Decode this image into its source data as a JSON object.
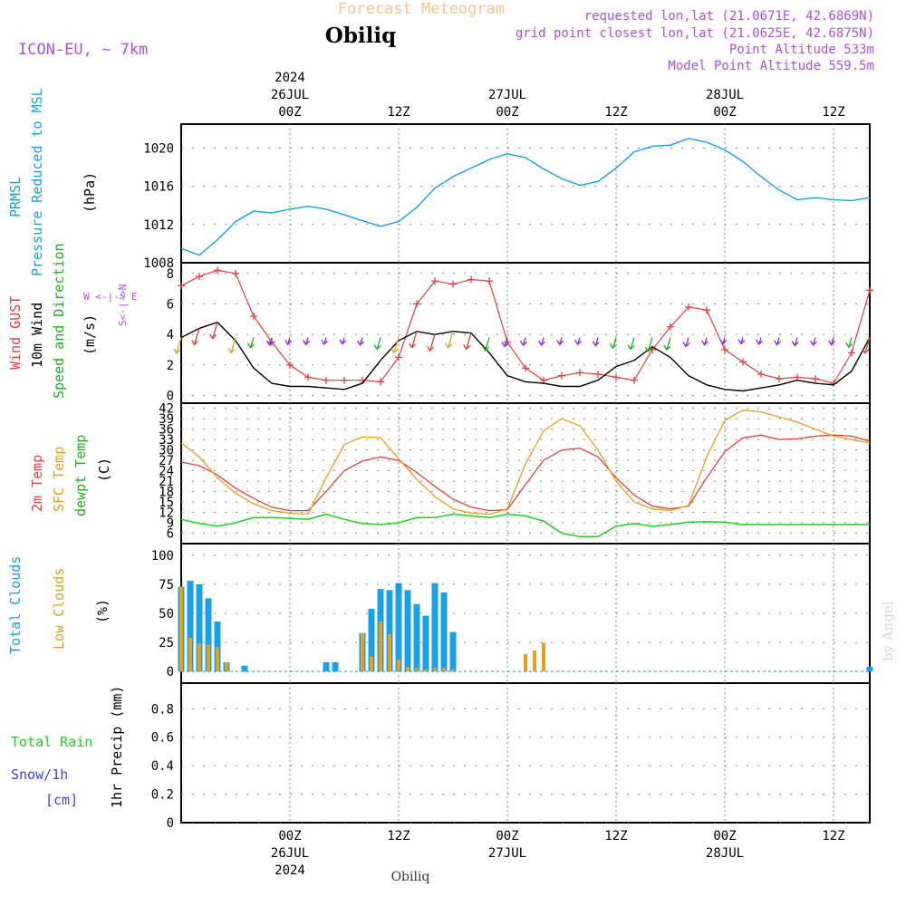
{
  "header": {
    "product_title": "Forecast Meteogram",
    "station": "Obiliq",
    "model": "ICON-EU, ~ 7km",
    "requested": "requested lon,lat (21.0671E, 42.6869N)",
    "gridpoint": "grid point closest lon,lat (21.0625E, 42.6875N)",
    "point_alt": "Point Altitude 533m",
    "model_alt": "Model Point Altitude 559.5m",
    "credit": "by Angel",
    "footer_station": "Obiliq"
  },
  "time_axis": {
    "top": [
      {
        "lines": [
          "2024",
          "26JUL",
          "00Z"
        ],
        "h": 12
      },
      {
        "lines": [
          "12Z"
        ],
        "h": 24
      },
      {
        "lines": [
          "27JUL",
          "00Z"
        ],
        "h": 36
      },
      {
        "lines": [
          "12Z"
        ],
        "h": 48
      },
      {
        "lines": [
          "28JUL",
          "00Z"
        ],
        "h": 60
      },
      {
        "lines": [
          "12Z"
        ],
        "h": 72
      }
    ],
    "bottom": [
      {
        "lines": [
          "00Z",
          "26JUL",
          "2024"
        ],
        "h": 12
      },
      {
        "lines": [
          "12Z"
        ],
        "h": 24
      },
      {
        "lines": [
          "00Z",
          "27JUL"
        ],
        "h": 36
      },
      {
        "lines": [
          "12Z"
        ],
        "h": 48
      },
      {
        "lines": [
          "00Z",
          "28JUL"
        ],
        "h": 60
      },
      {
        "lines": [
          "12Z"
        ],
        "h": 72
      }
    ]
  },
  "panel_labels": {
    "prmsl_1": "PRMSL",
    "prmsl_2": "Pressure Reduced to MSL",
    "prmsl_unit": "(hPa)",
    "wind_1": "Wind GUST",
    "wind_2": "10m Wind",
    "wind_3": "Speed and Direction",
    "wind_unit": "(m/s)",
    "compass_w": "W <-|-> E",
    "compass_ns": "S<-|->N",
    "temp_1": "2m Temp",
    "temp_2": "SFC Temp",
    "temp_3": "dewpt Temp",
    "temp_unit": "(C)",
    "cloud_1": "Total Clouds",
    "cloud_2": "Low Clouds",
    "cloud_unit": "(%)",
    "rain_1": "Total  Rain",
    "rain_2": "Snow/1h",
    "rain_3": "[cm]",
    "rain_axis": "1hr Precip (mm)"
  },
  "colors": {
    "pressure": "#1aa0e6",
    "gust": "#e64040",
    "wind": "#000000",
    "t2m": "#e64040",
    "tsfc": "#e6a020",
    "dewpt": "#20d020",
    "total_cloud": "#1aa0e6",
    "low_cloud": "#e6a020",
    "rain": "#20d020",
    "snow": "#4040e6",
    "label_purple": "#b050e0",
    "title_orange": "#f0c890"
  },
  "chart_data": [
    {
      "type": "line",
      "title": "PRMSL Pressure Reduced to MSL",
      "ylabel": "(hPa)",
      "x_hours": [
        0,
        2,
        4,
        6,
        8,
        10,
        12,
        14,
        16,
        18,
        20,
        22,
        24,
        26,
        28,
        30,
        32,
        34,
        36,
        38,
        40,
        42,
        44,
        46,
        48,
        50,
        52,
        54,
        56,
        58,
        60,
        62,
        64,
        66,
        68,
        70,
        72,
        74,
        76
      ],
      "series": [
        {
          "name": "PRMSL",
          "values": [
            1009.5,
            1008.8,
            1010.4,
            1012.3,
            1013.4,
            1013.2,
            1013.6,
            1013.9,
            1013.6,
            1013.0,
            1012.4,
            1011.8,
            1012.3,
            1013.8,
            1015.8,
            1017.0,
            1017.9,
            1018.8,
            1019.4,
            1019.0,
            1017.8,
            1016.8,
            1016.1,
            1016.5,
            1017.9,
            1019.6,
            1020.2,
            1020.3,
            1021.0,
            1020.6,
            1019.8,
            1018.6,
            1017.0,
            1015.6,
            1014.6,
            1014.8,
            1014.6,
            1014.5,
            1014.8
          ]
        }
      ],
      "yticks": [
        1008,
        1012,
        1016,
        1020
      ],
      "ylim": [
        1008,
        1022.5
      ]
    },
    {
      "type": "line",
      "title": "Wind GUST / 10m Wind Speed and Direction",
      "ylabel": "(m/s)",
      "x_hours": [
        0,
        2,
        4,
        6,
        8,
        10,
        12,
        14,
        16,
        18,
        20,
        22,
        24,
        26,
        28,
        30,
        32,
        34,
        36,
        38,
        40,
        42,
        44,
        46,
        48,
        50,
        52,
        54,
        56,
        58,
        60,
        62,
        64,
        66,
        68,
        70,
        72,
        74,
        76
      ],
      "series": [
        {
          "name": "Wind GUST",
          "values": [
            7.2,
            7.8,
            8.2,
            8.0,
            5.2,
            3.5,
            2.0,
            1.2,
            1.0,
            1.0,
            1.0,
            0.9,
            2.5,
            6.0,
            7.5,
            7.3,
            7.6,
            7.5,
            3.5,
            1.8,
            1.0,
            1.3,
            1.5,
            1.4,
            1.2,
            1.0,
            3.0,
            4.5,
            5.8,
            5.6,
            3.0,
            2.2,
            1.4,
            1.1,
            1.2,
            1.1,
            0.8,
            2.8,
            6.9
          ]
        },
        {
          "name": "10m Wind",
          "values": [
            3.8,
            4.4,
            4.8,
            3.6,
            1.8,
            0.8,
            0.6,
            0.6,
            0.5,
            0.4,
            0.8,
            2.3,
            3.6,
            4.2,
            4.0,
            4.2,
            4.1,
            2.8,
            1.3,
            0.9,
            0.8,
            0.6,
            0.6,
            1.0,
            1.9,
            2.3,
            3.2,
            2.5,
            1.3,
            0.7,
            0.4,
            0.3,
            0.5,
            0.7,
            1.0,
            0.8,
            0.7,
            1.6,
            3.8
          ]
        }
      ],
      "yticks": [
        0,
        2,
        4,
        6,
        8
      ],
      "ylim": [
        -0.5,
        8.7
      ]
    },
    {
      "type": "line",
      "title": "2m Temp / SFC Temp / dewpt Temp",
      "ylabel": "(C)",
      "x_hours": [
        0,
        2,
        4,
        6,
        8,
        10,
        12,
        14,
        16,
        18,
        20,
        22,
        24,
        26,
        28,
        30,
        32,
        34,
        36,
        38,
        40,
        42,
        44,
        46,
        48,
        50,
        52,
        54,
        56,
        58,
        60,
        62,
        64,
        66,
        68,
        70,
        72,
        74,
        76
      ],
      "series": [
        {
          "name": "2m Temp",
          "values": [
            26.5,
            25.5,
            22.8,
            19.0,
            16.0,
            13.5,
            12.5,
            12.5,
            18.0,
            24.0,
            26.8,
            28.0,
            27.0,
            23.5,
            19.5,
            15.8,
            13.5,
            12.5,
            12.8,
            20.0,
            27.0,
            30.0,
            30.5,
            28.0,
            22.0,
            17.0,
            13.8,
            13.0,
            13.8,
            22.0,
            29.5,
            33.5,
            34.3,
            33.0,
            33.2,
            34.0,
            34.3,
            34.0,
            32.5
          ]
        },
        {
          "name": "SFC Temp",
          "values": [
            32.0,
            28.0,
            22.0,
            17.5,
            14.5,
            12.5,
            11.8,
            11.5,
            22.0,
            31.5,
            33.8,
            33.5,
            27.5,
            21.5,
            16.5,
            13.0,
            11.8,
            11.5,
            13.0,
            26.0,
            35.5,
            39.0,
            37.0,
            30.0,
            21.0,
            15.0,
            13.0,
            12.5,
            14.0,
            28.0,
            38.5,
            41.5,
            41.0,
            39.5,
            38.0,
            36.0,
            34.0,
            33.0,
            32.0
          ]
        },
        {
          "name": "dewpt Temp",
          "values": [
            10.0,
            8.8,
            8.0,
            9.0,
            10.5,
            10.5,
            10.3,
            10.0,
            11.5,
            10.0,
            8.8,
            8.5,
            9.0,
            10.5,
            10.5,
            11.5,
            11.0,
            10.5,
            11.5,
            11.0,
            9.5,
            6.0,
            5.0,
            5.0,
            8.0,
            8.8,
            8.0,
            8.5,
            9.2,
            9.3,
            9.2,
            8.5,
            8.5,
            8.5,
            8.5,
            8.5,
            8.5,
            8.5,
            8.5
          ]
        }
      ],
      "yticks": [
        6,
        9,
        12,
        15,
        18,
        21,
        24,
        27,
        30,
        33,
        36,
        39,
        42
      ],
      "ylim": [
        3,
        43.5
      ]
    },
    {
      "type": "bar",
      "title": "Total Clouds / Low Clouds",
      "ylabel": "(%)",
      "x_hours": [
        0,
        1,
        2,
        3,
        4,
        5,
        6,
        7,
        8,
        9,
        10,
        11,
        12,
        13,
        14,
        15,
        16,
        17,
        18,
        19,
        20,
        21,
        22,
        23,
        24,
        25,
        26,
        27,
        28,
        29,
        30,
        31,
        32,
        33,
        34,
        35,
        36,
        37,
        38,
        39,
        40,
        41,
        42,
        43,
        44,
        45,
        46,
        47,
        48,
        49,
        50,
        51,
        52,
        53,
        54,
        55,
        56,
        57,
        58,
        59,
        60,
        61,
        62,
        63,
        64,
        65,
        66,
        67,
        68,
        69,
        70,
        71,
        72,
        73,
        74,
        75,
        76
      ],
      "series": [
        {
          "name": "Total Clouds",
          "values": [
            73,
            78,
            75,
            63,
            43,
            8,
            0,
            5,
            0,
            0,
            0,
            0,
            0,
            0,
            0,
            0,
            8,
            8,
            0,
            0,
            33,
            54,
            71,
            70,
            76,
            70,
            58,
            48,
            76,
            68,
            34,
            0,
            0,
            0,
            0,
            0,
            0,
            0,
            0,
            0,
            0,
            0,
            0,
            0,
            0,
            0,
            0,
            0,
            0,
            0,
            0,
            0,
            0,
            0,
            0,
            0,
            0,
            0,
            0,
            0,
            0,
            0,
            0,
            0,
            0,
            0,
            0,
            0,
            0,
            0,
            0,
            0,
            0,
            0,
            0,
            0,
            4
          ]
        },
        {
          "name": "Low Clouds",
          "values": [
            73,
            29,
            24,
            23,
            21,
            8,
            0,
            0,
            0,
            0,
            0,
            0,
            0,
            0,
            0,
            0,
            0,
            0,
            0,
            0,
            33,
            13,
            43,
            32,
            10,
            4,
            3,
            2,
            3,
            3,
            2,
            0,
            0,
            0,
            0,
            0,
            0,
            0,
            15,
            18,
            25,
            0,
            0,
            0,
            0,
            0,
            0,
            0,
            0,
            0,
            0,
            0,
            0,
            0,
            0,
            0,
            0,
            0,
            0,
            0,
            0,
            0,
            0,
            0,
            0,
            0,
            0,
            0,
            0,
            0,
            0,
            0,
            0,
            0,
            0,
            0,
            0
          ]
        }
      ],
      "yticks": [
        0,
        25,
        50,
        75,
        100
      ],
      "ylim": [
        -10,
        110
      ]
    },
    {
      "type": "bar",
      "title": "Total Rain / Snow/1h [cm]",
      "ylabel": "1hr Precip (mm)",
      "x_hours": [
        0,
        76
      ],
      "series": [
        {
          "name": "Total Rain",
          "values": [
            0,
            0
          ]
        }
      ],
      "yticks": [
        0,
        0.2,
        0.4,
        0.6,
        0.8
      ],
      "ylim": [
        0,
        0.98
      ]
    }
  ]
}
